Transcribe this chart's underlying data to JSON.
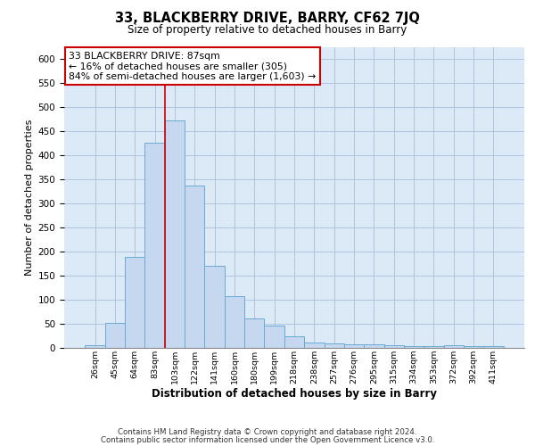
{
  "title": "33, BLACKBERRY DRIVE, BARRY, CF62 7JQ",
  "subtitle": "Size of property relative to detached houses in Barry",
  "xlabel": "Distribution of detached houses by size in Barry",
  "ylabel": "Number of detached properties",
  "footer_line1": "Contains HM Land Registry data © Crown copyright and database right 2024.",
  "footer_line2": "Contains public sector information licensed under the Open Government Licence v3.0.",
  "categories": [
    "26sqm",
    "45sqm",
    "64sqm",
    "83sqm",
    "103sqm",
    "122sqm",
    "141sqm",
    "160sqm",
    "180sqm",
    "199sqm",
    "218sqm",
    "238sqm",
    "257sqm",
    "276sqm",
    "295sqm",
    "315sqm",
    "334sqm",
    "353sqm",
    "372sqm",
    "392sqm",
    "411sqm"
  ],
  "values": [
    6,
    52,
    188,
    425,
    473,
    337,
    171,
    107,
    62,
    46,
    24,
    11,
    10,
    8,
    7,
    5,
    4,
    4,
    5,
    4,
    3
  ],
  "bar_color": "#c5d8f0",
  "bar_edge_color": "#6aaad4",
  "grid_color": "#b0c4de",
  "background_color": "#dce9f7",
  "vline_color": "#cc0000",
  "vline_x_index": 3.5,
  "annotation_line1": "33 BLACKBERRY DRIVE: 87sqm",
  "annotation_line2": "← 16% of detached houses are smaller (305)",
  "annotation_line3": "84% of semi-detached houses are larger (1,603) →",
  "annotation_box_color": "white",
  "annotation_box_edge_color": "#cc0000",
  "ylim": [
    0,
    625
  ],
  "yticks": [
    0,
    50,
    100,
    150,
    200,
    250,
    300,
    350,
    400,
    450,
    500,
    550,
    600
  ]
}
